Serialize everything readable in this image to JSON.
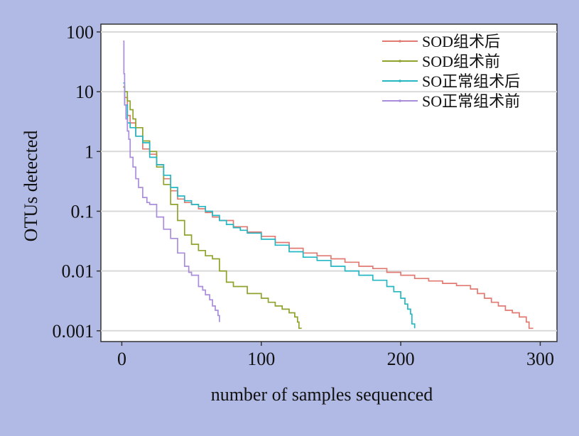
{
  "chart_data": {
    "type": "line",
    "title": "",
    "xlabel": "number of samples sequenced",
    "ylabel": "OTUs detected",
    "xlim": [
      -15,
      312
    ],
    "xticks": [
      0,
      100,
      200,
      300
    ],
    "xtick_labels": [
      "0",
      "100",
      "200",
      "300"
    ],
    "y_scale": "log",
    "ylim": [
      0.00066,
      135
    ],
    "yticks": [
      100,
      10,
      1,
      0.1,
      0.01,
      0.001
    ],
    "ytick_labels": [
      "100",
      "10",
      "1",
      "0.1",
      "0.01",
      "0.001"
    ],
    "grid": true,
    "legend_position": "top-right",
    "series": [
      {
        "name": "SOD组术后",
        "color": "#e07a72",
        "x": [
          1,
          2,
          4,
          6,
          10,
          15,
          20,
          25,
          30,
          35,
          40,
          45,
          50,
          55,
          60,
          65,
          70,
          80,
          90,
          100,
          110,
          120,
          130,
          140,
          150,
          160,
          170,
          180,
          190,
          200,
          210,
          220,
          230,
          240,
          250,
          255,
          260,
          265,
          270,
          275,
          280,
          285,
          290,
          292,
          295
        ],
        "y": [
          12,
          8,
          4,
          3,
          1.8,
          1.1,
          0.9,
          0.6,
          0.35,
          0.22,
          0.16,
          0.14,
          0.13,
          0.11,
          0.095,
          0.08,
          0.07,
          0.055,
          0.045,
          0.038,
          0.03,
          0.024,
          0.02,
          0.018,
          0.016,
          0.014,
          0.012,
          0.011,
          0.0095,
          0.0085,
          0.0075,
          0.0068,
          0.0062,
          0.0057,
          0.005,
          0.0042,
          0.0035,
          0.003,
          0.0026,
          0.0022,
          0.002,
          0.0017,
          0.0014,
          0.0011,
          0.0011
        ]
      },
      {
        "name": "SOD组术前",
        "color": "#8ea32c",
        "x": [
          1,
          2,
          4,
          6,
          8,
          10,
          15,
          20,
          25,
          30,
          35,
          40,
          45,
          50,
          55,
          60,
          65,
          70,
          75,
          80,
          90,
          100,
          105,
          110,
          115,
          120,
          124,
          126,
          127,
          129
        ],
        "y": [
          12,
          10,
          7,
          5,
          3.5,
          2.5,
          1.5,
          1.0,
          0.55,
          0.28,
          0.13,
          0.07,
          0.04,
          0.028,
          0.022,
          0.018,
          0.016,
          0.01,
          0.0065,
          0.0055,
          0.0042,
          0.0035,
          0.003,
          0.0026,
          0.0023,
          0.002,
          0.0017,
          0.0014,
          0.0011,
          0.0011
        ]
      },
      {
        "name": "SO正常组术后",
        "color": "#25b7c3",
        "x": [
          1,
          2,
          4,
          6,
          10,
          15,
          20,
          25,
          30,
          35,
          40,
          45,
          50,
          55,
          60,
          65,
          70,
          75,
          80,
          85,
          90,
          100,
          110,
          120,
          130,
          140,
          150,
          160,
          170,
          180,
          190,
          195,
          200,
          203,
          205,
          207,
          208,
          210
        ],
        "y": [
          14,
          6,
          3,
          2.5,
          1.8,
          1.4,
          0.8,
          0.6,
          0.4,
          0.25,
          0.18,
          0.15,
          0.13,
          0.12,
          0.1,
          0.085,
          0.07,
          0.06,
          0.053,
          0.048,
          0.043,
          0.034,
          0.027,
          0.021,
          0.017,
          0.015,
          0.012,
          0.01,
          0.0085,
          0.007,
          0.0055,
          0.0045,
          0.0035,
          0.0028,
          0.0023,
          0.0019,
          0.0013,
          0.0011
        ]
      },
      {
        "name": "SO正常组术前",
        "color": "#a98ddb",
        "x": [
          1,
          1.5,
          2,
          3,
          4,
          5,
          6,
          8,
          10,
          12,
          15,
          18,
          20,
          25,
          30,
          35,
          40,
          45,
          48,
          50,
          55,
          58,
          60,
          63,
          65,
          67,
          69,
          70
        ],
        "y": [
          70,
          20,
          6,
          3.5,
          2.2,
          1.6,
          0.8,
          0.55,
          0.35,
          0.25,
          0.17,
          0.14,
          0.13,
          0.08,
          0.05,
          0.035,
          0.02,
          0.012,
          0.0095,
          0.0085,
          0.0055,
          0.0048,
          0.004,
          0.0033,
          0.0026,
          0.0022,
          0.0018,
          0.0014
        ]
      }
    ]
  }
}
